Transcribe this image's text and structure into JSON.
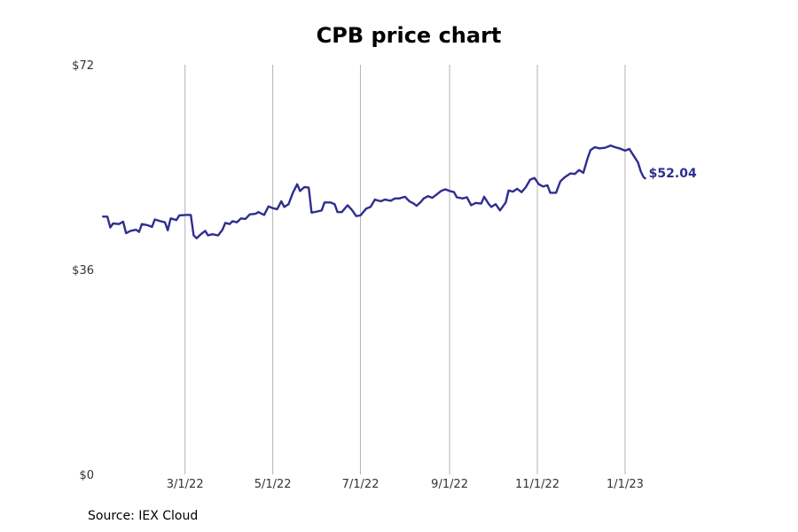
{
  "chart_data": {
    "type": "line",
    "title": "CPB price chart",
    "source": "Source: IEX Cloud",
    "xlabel": "",
    "ylabel": "",
    "ylim": [
      0,
      72
    ],
    "yticks": [
      {
        "value": 0,
        "label": "$0"
      },
      {
        "value": 36,
        "label": "$36"
      },
      {
        "value": 72,
        "label": "$72"
      }
    ],
    "xlim": [
      "2022-01-01",
      "2023-03-08"
    ],
    "xticks": [
      {
        "date": "2022-03-01",
        "label": "3/1/22"
      },
      {
        "date": "2022-05-01",
        "label": "5/1/22"
      },
      {
        "date": "2022-07-01",
        "label": "7/1/22"
      },
      {
        "date": "2022-09-01",
        "label": "9/1/22"
      },
      {
        "date": "2022-11-01",
        "label": "11/1/22"
      },
      {
        "date": "2023-01-01",
        "label": "1/1/23"
      }
    ],
    "grid": "vertical",
    "line_color": "#2e2e8f",
    "end_label": "$52.04",
    "series": [
      {
        "points": [
          [
            "2022-01-03",
            45.3
          ],
          [
            "2022-01-06",
            45.3
          ],
          [
            "2022-01-08",
            43.4
          ],
          [
            "2022-01-10",
            44.1
          ],
          [
            "2022-01-14",
            44.0
          ],
          [
            "2022-01-17",
            44.4
          ],
          [
            "2022-01-19",
            42.4
          ],
          [
            "2022-01-22",
            42.8
          ],
          [
            "2022-01-26",
            43.0
          ],
          [
            "2022-01-28",
            42.6
          ],
          [
            "2022-01-30",
            44.0
          ],
          [
            "2022-02-03",
            43.8
          ],
          [
            "2022-02-06",
            43.5
          ],
          [
            "2022-02-08",
            44.8
          ],
          [
            "2022-02-12",
            44.5
          ],
          [
            "2022-02-15",
            44.3
          ],
          [
            "2022-02-17",
            42.9
          ],
          [
            "2022-02-19",
            45.0
          ],
          [
            "2022-02-23",
            44.7
          ],
          [
            "2022-02-25",
            45.5
          ],
          [
            "2022-03-01",
            45.6
          ],
          [
            "2022-03-05",
            45.6
          ],
          [
            "2022-03-07",
            42.0
          ],
          [
            "2022-03-09",
            41.5
          ],
          [
            "2022-03-12",
            42.2
          ],
          [
            "2022-03-15",
            42.8
          ],
          [
            "2022-03-17",
            42.0
          ],
          [
            "2022-03-20",
            42.2
          ],
          [
            "2022-03-24",
            42.0
          ],
          [
            "2022-03-27",
            43.0
          ],
          [
            "2022-03-29",
            44.2
          ],
          [
            "2022-04-01",
            44.0
          ],
          [
            "2022-04-03",
            44.5
          ],
          [
            "2022-04-06",
            44.3
          ],
          [
            "2022-04-09",
            45.0
          ],
          [
            "2022-04-12",
            44.9
          ],
          [
            "2022-04-15",
            45.7
          ],
          [
            "2022-04-19",
            45.8
          ],
          [
            "2022-04-21",
            46.1
          ],
          [
            "2022-04-25",
            45.6
          ],
          [
            "2022-04-28",
            47.1
          ],
          [
            "2022-05-01",
            46.8
          ],
          [
            "2022-05-04",
            46.6
          ],
          [
            "2022-05-07",
            48.0
          ],
          [
            "2022-05-09",
            47.0
          ],
          [
            "2022-05-12",
            47.5
          ],
          [
            "2022-05-15",
            49.5
          ],
          [
            "2022-05-18",
            51.0
          ],
          [
            "2022-05-20",
            49.8
          ],
          [
            "2022-05-23",
            50.5
          ],
          [
            "2022-05-26",
            50.4
          ],
          [
            "2022-05-28",
            46.0
          ],
          [
            "2022-06-01",
            46.2
          ],
          [
            "2022-06-04",
            46.4
          ],
          [
            "2022-06-06",
            47.8
          ],
          [
            "2022-06-10",
            47.8
          ],
          [
            "2022-06-13",
            47.5
          ],
          [
            "2022-06-15",
            46.1
          ],
          [
            "2022-06-18",
            46.1
          ],
          [
            "2022-06-22",
            47.3
          ],
          [
            "2022-06-25",
            46.5
          ],
          [
            "2022-06-28",
            45.4
          ],
          [
            "2022-07-01",
            45.5
          ],
          [
            "2022-07-05",
            46.7
          ],
          [
            "2022-07-08",
            47.0
          ],
          [
            "2022-07-11",
            48.3
          ],
          [
            "2022-07-15",
            48.0
          ],
          [
            "2022-07-18",
            48.3
          ],
          [
            "2022-07-22",
            48.1
          ],
          [
            "2022-07-25",
            48.5
          ],
          [
            "2022-07-28",
            48.5
          ],
          [
            "2022-08-01",
            48.8
          ],
          [
            "2022-08-04",
            48.0
          ],
          [
            "2022-08-07",
            47.6
          ],
          [
            "2022-08-09",
            47.2
          ],
          [
            "2022-08-12",
            47.9
          ],
          [
            "2022-08-14",
            48.5
          ],
          [
            "2022-08-17",
            48.9
          ],
          [
            "2022-08-20",
            48.6
          ],
          [
            "2022-08-23",
            49.2
          ],
          [
            "2022-08-26",
            49.8
          ],
          [
            "2022-08-29",
            50.1
          ],
          [
            "2022-09-01",
            49.8
          ],
          [
            "2022-09-04",
            49.6
          ],
          [
            "2022-09-06",
            48.7
          ],
          [
            "2022-09-10",
            48.5
          ],
          [
            "2022-09-13",
            48.7
          ],
          [
            "2022-09-16",
            47.3
          ],
          [
            "2022-09-19",
            47.7
          ],
          [
            "2022-09-23",
            47.6
          ],
          [
            "2022-09-25",
            48.8
          ],
          [
            "2022-09-28",
            47.6
          ],
          [
            "2022-09-30",
            47.0
          ],
          [
            "2022-10-03",
            47.5
          ],
          [
            "2022-10-06",
            46.4
          ],
          [
            "2022-10-10",
            47.8
          ],
          [
            "2022-10-12",
            49.9
          ],
          [
            "2022-10-15",
            49.7
          ],
          [
            "2022-10-18",
            50.2
          ],
          [
            "2022-10-21",
            49.6
          ],
          [
            "2022-10-24",
            50.5
          ],
          [
            "2022-10-27",
            51.8
          ],
          [
            "2022-10-30",
            52.1
          ],
          [
            "2022-11-02",
            51.0
          ],
          [
            "2022-11-05",
            50.6
          ],
          [
            "2022-11-08",
            50.8
          ],
          [
            "2022-11-10",
            49.5
          ],
          [
            "2022-11-14",
            49.5
          ],
          [
            "2022-11-17",
            51.5
          ],
          [
            "2022-11-20",
            52.2
          ],
          [
            "2022-11-24",
            52.9
          ],
          [
            "2022-11-27",
            52.8
          ],
          [
            "2022-11-30",
            53.5
          ],
          [
            "2022-12-03",
            53.0
          ],
          [
            "2022-12-06",
            55.6
          ],
          [
            "2022-12-08",
            57.0
          ],
          [
            "2022-12-11",
            57.5
          ],
          [
            "2022-12-14",
            57.3
          ],
          [
            "2022-12-18",
            57.4
          ],
          [
            "2022-12-22",
            57.8
          ],
          [
            "2022-12-25",
            57.5
          ],
          [
            "2022-12-28",
            57.3
          ],
          [
            "2023-01-01",
            56.9
          ],
          [
            "2023-01-04",
            57.2
          ],
          [
            "2023-01-07",
            56.0
          ],
          [
            "2023-01-10",
            54.8
          ],
          [
            "2023-01-12",
            53.2
          ],
          [
            "2023-01-14",
            52.2
          ],
          [
            "2023-01-15",
            52.04
          ]
        ]
      }
    ]
  }
}
